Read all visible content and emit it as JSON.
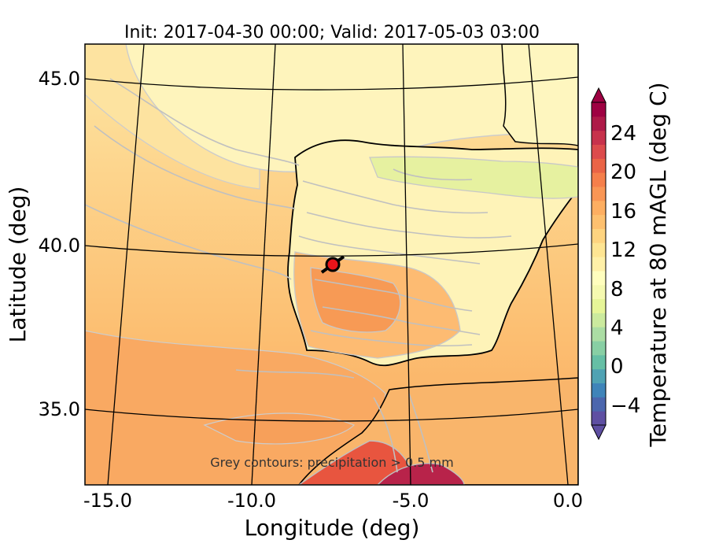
{
  "title": "Init: 2017-04-30 00:00; Valid: 2017-05-03 03:00",
  "x_axis": {
    "label": "Longitude (deg)",
    "ticks": [
      "-15.0",
      "-10.0",
      "-5.0",
      "0.0"
    ]
  },
  "y_axis": {
    "label": "Latitude (deg)",
    "ticks": [
      "45.0",
      "40.0",
      "35.0"
    ]
  },
  "colorbar": {
    "label": "Temperature at 80 mAGL (deg C)",
    "ticks": [
      "24",
      "20",
      "16",
      "12",
      "8",
      "4",
      "0",
      "−4"
    ],
    "range": [
      -6,
      27
    ]
  },
  "annotation": "Grey contours: precipitation > 0.5 mm",
  "marker": {
    "lon": -7.6,
    "lat": 39.3,
    "color": "#e8141a"
  },
  "colors": {
    "sea_warm": "#fbb66a",
    "sea_mild": "#fdd38a",
    "north_cool": "#fdf0b0",
    "land_cool": "#fef7c2",
    "africa_hot": "#e8553f",
    "contour_grey": "#c0c0c0"
  }
}
